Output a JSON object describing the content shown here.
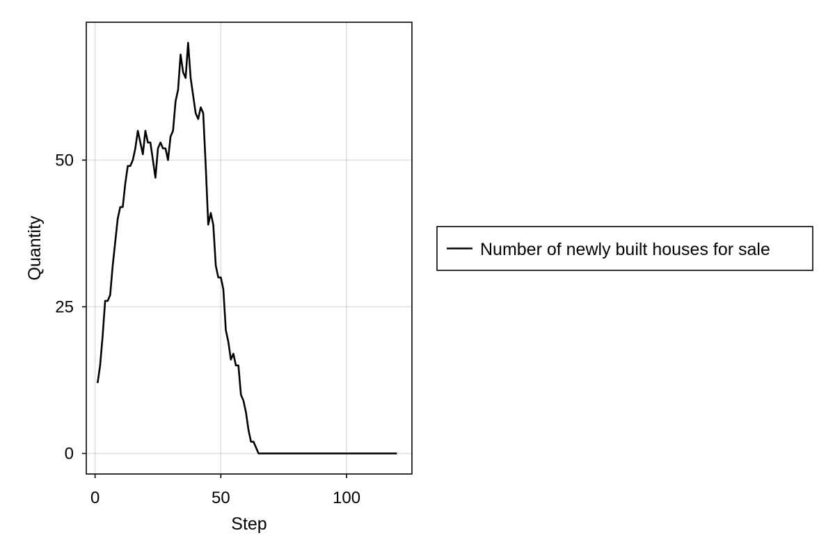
{
  "chart_data": {
    "type": "line",
    "title": "",
    "xlabel": "Step",
    "ylabel": "Quantity",
    "xlim": [
      -3.5,
      126
    ],
    "ylim": [
      -3.5,
      73.5
    ],
    "xticks": [
      0,
      50,
      100
    ],
    "yticks": [
      0,
      25,
      50
    ],
    "xtick_labels": [
      "0",
      "50",
      "100"
    ],
    "ytick_labels": [
      "0",
      "25",
      "50"
    ],
    "grid": true,
    "legend_position": "right",
    "line_color": "#000000",
    "series": [
      {
        "name": "Number of newly built houses for sale",
        "x": [
          1,
          2,
          3,
          4,
          5,
          6,
          7,
          8,
          9,
          10,
          11,
          12,
          13,
          14,
          15,
          16,
          17,
          18,
          19,
          20,
          21,
          22,
          23,
          24,
          25,
          26,
          27,
          28,
          29,
          30,
          31,
          32,
          33,
          34,
          35,
          36,
          37,
          38,
          39,
          40,
          41,
          42,
          43,
          44,
          45,
          46,
          47,
          48,
          49,
          50,
          51,
          52,
          53,
          54,
          55,
          56,
          57,
          58,
          59,
          60,
          61,
          62,
          63,
          64,
          65,
          66,
          67,
          68,
          69,
          70,
          71,
          72,
          73,
          74,
          75,
          76,
          77,
          78,
          79,
          80,
          81,
          82,
          83,
          84,
          85,
          86,
          87,
          88,
          89,
          90,
          91,
          92,
          93,
          94,
          95,
          96,
          97,
          98,
          99,
          100,
          101,
          102,
          103,
          104,
          105,
          106,
          107,
          108,
          109,
          110,
          111,
          112,
          113,
          114,
          115,
          116,
          117,
          118,
          119,
          120
        ],
        "y": [
          12,
          15,
          20,
          26,
          26,
          27,
          32,
          36,
          40,
          42,
          42,
          46,
          49,
          49,
          50,
          52,
          55,
          53,
          51,
          55,
          53,
          53,
          50,
          47,
          52,
          53,
          52,
          52,
          50,
          54,
          55,
          60,
          62,
          68,
          65,
          64,
          70,
          64,
          61,
          58,
          57,
          59,
          58,
          49,
          39,
          41,
          39,
          32,
          30,
          30,
          28,
          21,
          19,
          16,
          17,
          15,
          15,
          10,
          9,
          7,
          4,
          2,
          2,
          1,
          0,
          0,
          0,
          0,
          0,
          0,
          0,
          0,
          0,
          0,
          0,
          0,
          0,
          0,
          0,
          0,
          0,
          0,
          0,
          0,
          0,
          0,
          0,
          0,
          0,
          0,
          0,
          0,
          0,
          0,
          0,
          0,
          0,
          0,
          0,
          0,
          0,
          0,
          0,
          0,
          0,
          0,
          0,
          0,
          0,
          0,
          0,
          0,
          0,
          0,
          0,
          0,
          0,
          0,
          0,
          0
        ]
      }
    ]
  }
}
